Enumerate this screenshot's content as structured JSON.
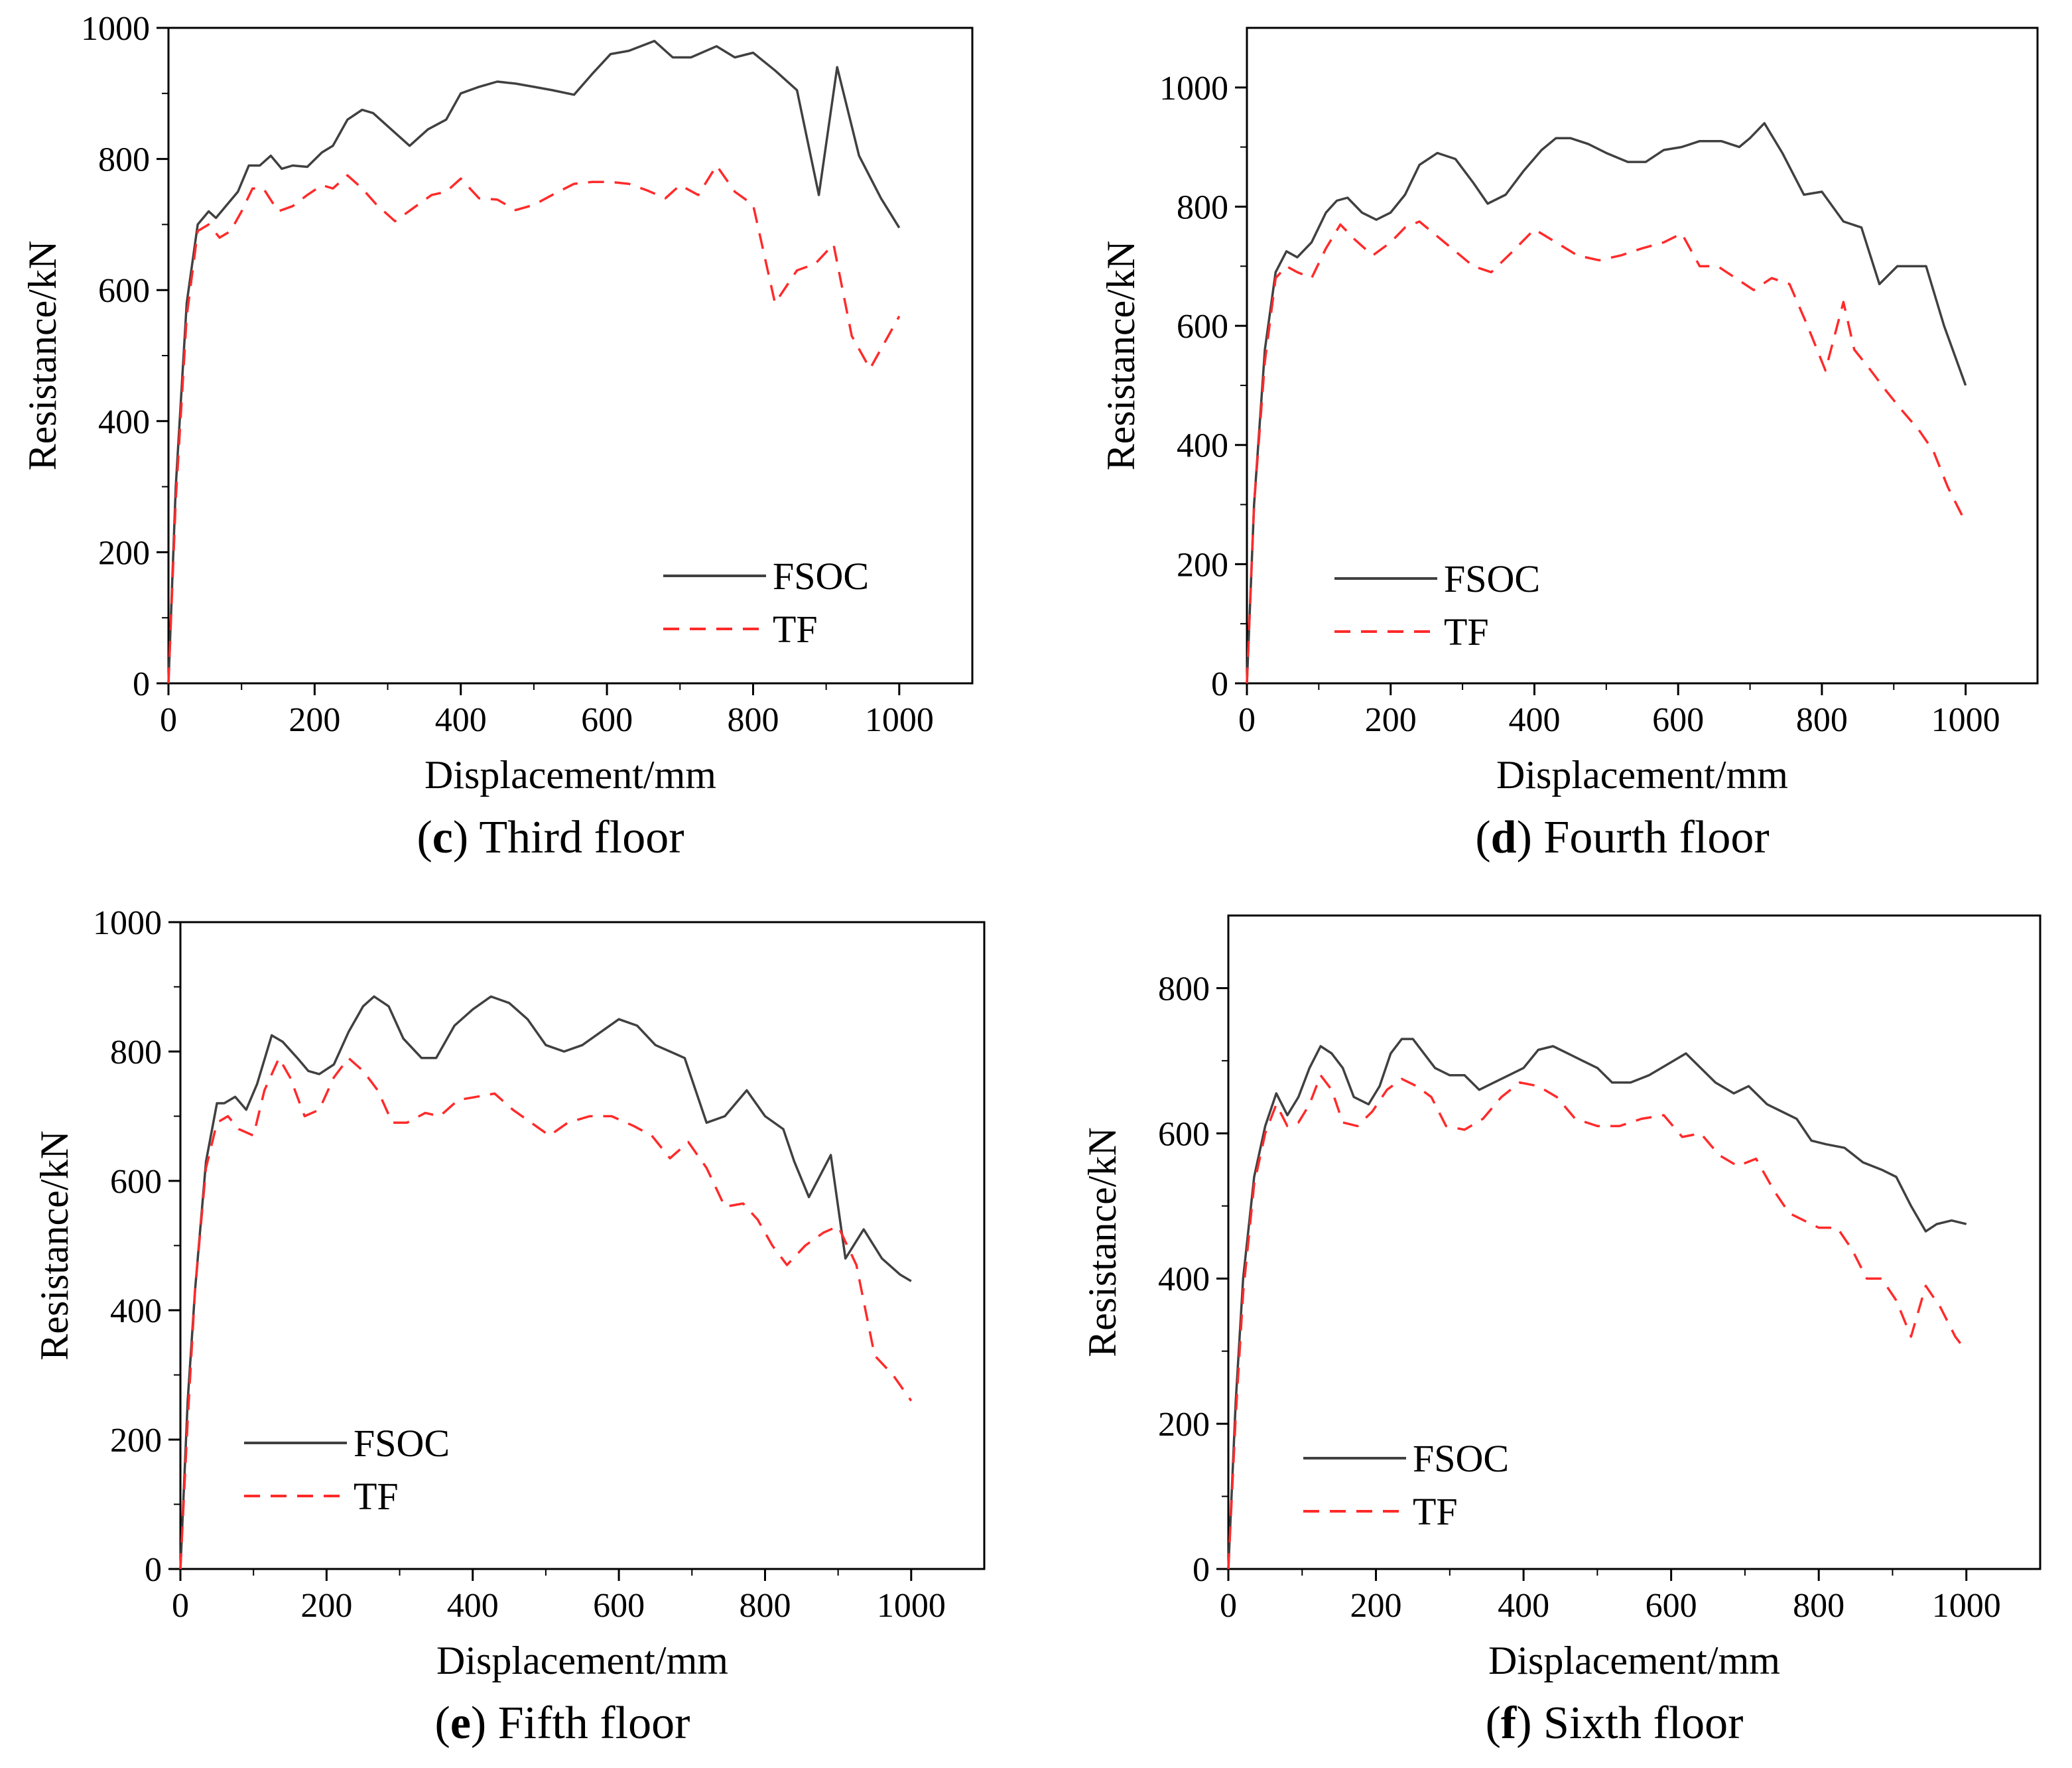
{
  "figure": {
    "chart_data": [
      {
        "type": "line",
        "panel": "c",
        "caption": {
          "letter": "c",
          "text": "Third floor"
        },
        "title": "",
        "xlabel": "Displacement/mm",
        "ylabel": "Resistance/kN",
        "xlim": [
          0,
          1100
        ],
        "ylim": [
          0,
          1000
        ],
        "xticks": [
          0,
          200,
          400,
          600,
          800,
          1000
        ],
        "yticks": [
          0,
          200,
          400,
          600,
          800,
          1000
        ],
        "grid": false,
        "legend_position": "bottom-right",
        "series": [
          {
            "name": "FSOC",
            "color": "#404040",
            "dash": "solid",
            "x": [
              0,
              10,
              25,
              40,
              55,
              65,
              80,
              95,
              110,
              125,
              140,
              155,
              170,
              190,
              210,
              225,
              245,
              265,
              280,
              300,
              330,
              355,
              380,
              400,
              425,
              450,
              475,
              500,
              525,
              555,
              580,
              605,
              630,
              665,
              690,
              715,
              750,
              775,
              800,
              830,
              860,
              890,
              915,
              945,
              975,
              1000
            ],
            "values": [
              0,
              300,
              580,
              700,
              720,
              710,
              730,
              750,
              790,
              790,
              805,
              785,
              790,
              788,
              810,
              820,
              860,
              875,
              870,
              850,
              820,
              845,
              860,
              900,
              910,
              918,
              915,
              910,
              905,
              898,
              930,
              960,
              965,
              980,
              955,
              955,
              972,
              955,
              962,
              935,
              905,
              745,
              940,
              805,
              740,
              695
            ]
          },
          {
            "name": "TF",
            "color": "#ff2a2a",
            "dash": "dashed",
            "x": [
              0,
              10,
              25,
              40,
              55,
              70,
              85,
              100,
              115,
              130,
              150,
              170,
              190,
              210,
              225,
              245,
              265,
              285,
              310,
              335,
              360,
              380,
              400,
              425,
              450,
              475,
              500,
              525,
              555,
              580,
              605,
              630,
              655,
              680,
              700,
              725,
              750,
              775,
              800,
              830,
              860,
              885,
              910,
              935,
              960,
              985,
              1000
            ],
            "values": [
              0,
              280,
              560,
              690,
              700,
              680,
              690,
              720,
              755,
              755,
              720,
              728,
              745,
              760,
              755,
              775,
              755,
              730,
              705,
              725,
              745,
              750,
              770,
              740,
              738,
              722,
              730,
              745,
              762,
              765,
              765,
              762,
              752,
              740,
              760,
              745,
              790,
              750,
              730,
              580,
              630,
              640,
              670,
              530,
              480,
              530,
              560
            ]
          }
        ]
      },
      {
        "type": "line",
        "panel": "d",
        "caption": {
          "letter": "d",
          "text": "Fourth floor"
        },
        "title": "",
        "xlabel": "Displacement/mm",
        "ylabel": "Resistance/kN",
        "xlim": [
          0,
          1100
        ],
        "ylim": [
          0,
          1100
        ],
        "xticks": [
          0,
          200,
          400,
          600,
          800,
          1000
        ],
        "yticks": [
          0,
          200,
          400,
          600,
          800,
          1000
        ],
        "grid": false,
        "legend_position": "bottom-left",
        "series": [
          {
            "name": "FSOC",
            "color": "#404040",
            "dash": "solid",
            "x": [
              0,
              10,
              25,
              40,
              55,
              70,
              90,
              110,
              125,
              140,
              160,
              180,
              200,
              220,
              240,
              265,
              290,
              315,
              335,
              360,
              385,
              410,
              430,
              450,
              475,
              500,
              530,
              555,
              580,
              605,
              630,
              660,
              685,
              700,
              720,
              745,
              775,
              800,
              830,
              855,
              880,
              905,
              925,
              945,
              970,
              1000
            ],
            "values": [
              0,
              300,
              560,
              690,
              725,
              715,
              740,
              790,
              810,
              815,
              790,
              778,
              790,
              820,
              870,
              890,
              880,
              840,
              805,
              820,
              860,
              895,
              915,
              915,
              905,
              890,
              875,
              875,
              895,
              900,
              910,
              910,
              900,
              915,
              940,
              890,
              820,
              825,
              775,
              765,
              670,
              700,
              700,
              700,
              600,
              500
            ]
          },
          {
            "name": "TF",
            "color": "#ff2a2a",
            "dash": "dashed",
            "x": [
              0,
              10,
              25,
              40,
              55,
              70,
              90,
              110,
              130,
              150,
              175,
              200,
              220,
              240,
              265,
              290,
              315,
              340,
              370,
              400,
              430,
              460,
              490,
              520,
              550,
              580,
              605,
              630,
              655,
              680,
              705,
              730,
              755,
              780,
              805,
              830,
              845,
              865,
              890,
              910,
              935,
              955,
              975,
              1000
            ],
            "values": [
              0,
              300,
              540,
              680,
              700,
              690,
              680,
              730,
              770,
              745,
              718,
              740,
              765,
              775,
              750,
              725,
              700,
              690,
              725,
              762,
              740,
              718,
              710,
              718,
              730,
              740,
              755,
              700,
              700,
              680,
              660,
              680,
              670,
              600,
              525,
              640,
              560,
              530,
              490,
              460,
              425,
              390,
              330,
              270
            ]
          }
        ]
      },
      {
        "type": "line",
        "panel": "e",
        "caption": {
          "letter": "e",
          "text": "Fifth floor"
        },
        "title": "",
        "xlabel": "Displacement/mm",
        "ylabel": "Resistance/kN",
        "xlim": [
          0,
          1100
        ],
        "ylim": [
          0,
          1000
        ],
        "xticks": [
          0,
          200,
          400,
          600,
          800,
          1000
        ],
        "yticks": [
          0,
          200,
          400,
          600,
          800,
          1000
        ],
        "grid": false,
        "legend_position": "bottom-left",
        "series": [
          {
            "name": "FSOC",
            "color": "#404040",
            "dash": "solid",
            "x": [
              0,
              10,
              20,
              35,
              50,
              60,
              75,
              90,
              105,
              125,
              140,
              160,
              175,
              190,
              210,
              230,
              250,
              265,
              285,
              305,
              330,
              350,
              375,
              400,
              425,
              450,
              475,
              500,
              525,
              550,
              575,
              600,
              625,
              650,
              670,
              690,
              720,
              745,
              775,
              800,
              825,
              840,
              860,
              890,
              910,
              935,
              960,
              985,
              1000
            ],
            "values": [
              0,
              260,
              430,
              630,
              720,
              720,
              730,
              710,
              750,
              825,
              815,
              790,
              770,
              765,
              780,
              830,
              870,
              885,
              870,
              820,
              790,
              790,
              840,
              865,
              885,
              875,
              850,
              810,
              800,
              810,
              830,
              850,
              840,
              810,
              800,
              790,
              690,
              700,
              740,
              700,
              680,
              630,
              575,
              640,
              480,
              525,
              480,
              455,
              445
            ]
          },
          {
            "name": "TF",
            "color": "#ff2a2a",
            "dash": "dashed",
            "x": [
              0,
              10,
              20,
              35,
              50,
              65,
              80,
              100,
              115,
              135,
              150,
              170,
              190,
              210,
              230,
              250,
              270,
              290,
              310,
              335,
              355,
              380,
              405,
              430,
              455,
              480,
              505,
              530,
              560,
              590,
              620,
              645,
              670,
              695,
              720,
              745,
              770,
              790,
              810,
              830,
              855,
              880,
              900,
              925,
              950,
              975,
              1000
            ],
            "values": [
              0,
              230,
              430,
              620,
              690,
              700,
              680,
              670,
              740,
              790,
              760,
              700,
              710,
              760,
              790,
              770,
              740,
              690,
              690,
              705,
              700,
              725,
              730,
              735,
              710,
              690,
              670,
              690,
              700,
              700,
              685,
              670,
              635,
              660,
              620,
              560,
              565,
              540,
              500,
              470,
              500,
              520,
              530,
              470,
              330,
              300,
              260
            ]
          }
        ]
      },
      {
        "type": "line",
        "panel": "f",
        "caption": {
          "letter": "f",
          "text": "Sixth floor"
        },
        "title": "",
        "xlabel": "Displacement/mm",
        "ylabel": "Resistance/kN",
        "xlim": [
          0,
          1100
        ],
        "ylim": [
          0,
          900
        ],
        "xticks": [
          0,
          200,
          400,
          600,
          800,
          1000
        ],
        "yticks": [
          0,
          200,
          400,
          600,
          800
        ],
        "grid": false,
        "legend_position": "bottom-left",
        "series": [
          {
            "name": "FSOC",
            "color": "#404040",
            "dash": "solid",
            "x": [
              0,
              10,
              20,
              35,
              50,
              65,
              80,
              95,
              110,
              125,
              140,
              155,
              170,
              190,
              205,
              220,
              235,
              250,
              265,
              280,
              300,
              320,
              340,
              360,
              380,
              400,
              420,
              440,
              460,
              480,
              500,
              520,
              545,
              570,
              595,
              620,
              640,
              660,
              685,
              705,
              730,
              750,
              770,
              790,
              810,
              835,
              860,
              885,
              905,
              925,
              945,
              960,
              980,
              1000
            ],
            "values": [
              0,
              230,
              400,
              540,
              610,
              655,
              625,
              650,
              690,
              720,
              710,
              690,
              650,
              640,
              665,
              710,
              730,
              730,
              710,
              690,
              680,
              680,
              660,
              670,
              680,
              690,
              715,
              720,
              710,
              700,
              690,
              670,
              670,
              680,
              695,
              710,
              690,
              670,
              655,
              665,
              640,
              630,
              620,
              590,
              585,
              580,
              560,
              550,
              540,
              500,
              465,
              475,
              480,
              475
            ]
          },
          {
            "name": "TF",
            "color": "#ff2a2a",
            "dash": "dashed",
            "x": [
              0,
              10,
              20,
              35,
              50,
              65,
              80,
              95,
              110,
              125,
              140,
              155,
              175,
              195,
              215,
              235,
              255,
              275,
              295,
              320,
              345,
              370,
              395,
              420,
              445,
              470,
              500,
              530,
              560,
              590,
              615,
              640,
              665,
              690,
              715,
              740,
              760,
              780,
              800,
              825,
              845,
              865,
              885,
              905,
              925,
              945,
              965,
              985,
              1000
            ],
            "values": [
              0,
              210,
              380,
              530,
              600,
              640,
              610,
              615,
              640,
              680,
              660,
              615,
              610,
              630,
              660,
              675,
              665,
              650,
              610,
              605,
              620,
              650,
              670,
              665,
              650,
              620,
              610,
              610,
              620,
              625,
              595,
              600,
              570,
              555,
              565,
              520,
              490,
              480,
              470,
              470,
              440,
              400,
              400,
              370,
              320,
              390,
              360,
              320,
              300
            ]
          }
        ]
      }
    ]
  }
}
